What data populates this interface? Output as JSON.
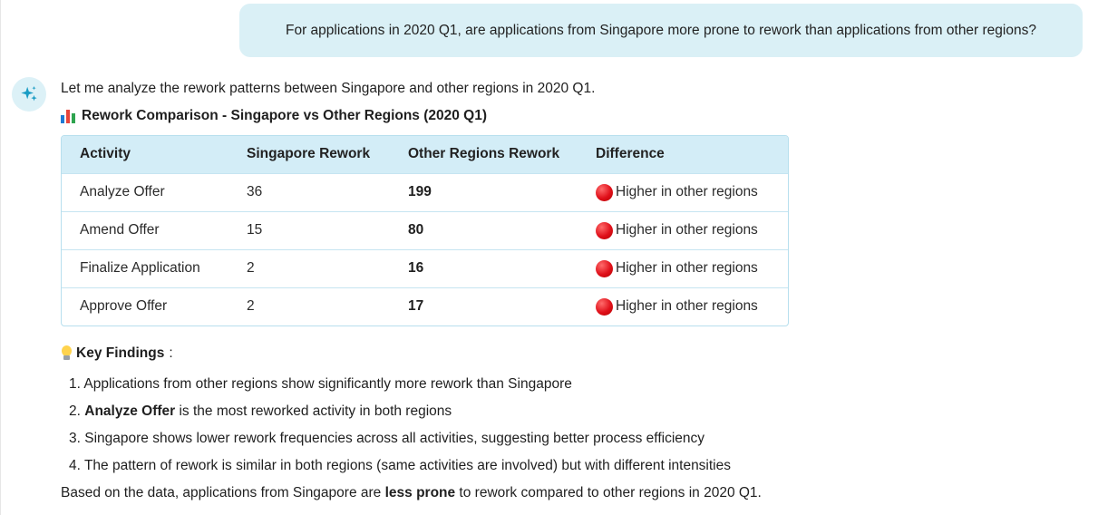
{
  "user_message": "For applications in 2020 Q1, are applications from Singapore more prone to rework than applications from other regions?",
  "assistant": {
    "intro": "Let me analyze the rework patterns between Singapore and other regions in 2020 Q1.",
    "section_title": "Rework Comparison - Singapore vs Other Regions (2020 Q1)",
    "table": {
      "headers": [
        "Activity",
        "Singapore Rework",
        "Other Regions Rework",
        "Difference"
      ],
      "rows": [
        {
          "activity": "Analyze Offer",
          "singapore": "36",
          "other": "199",
          "difference": "Higher in other regions"
        },
        {
          "activity": "Amend Offer",
          "singapore": "15",
          "other": "80",
          "difference": "Higher in other regions"
        },
        {
          "activity": "Finalize Application",
          "singapore": "2",
          "other": "16",
          "difference": "Higher in other regions"
        },
        {
          "activity": "Approve Offer",
          "singapore": "2",
          "other": "17",
          "difference": "Higher in other regions"
        }
      ]
    },
    "key_findings_label": "Key Findings",
    "findings": [
      {
        "num": "1.",
        "pre": "Applications from other regions show significantly more rework than Singapore",
        "bold": "",
        "post": ""
      },
      {
        "num": "2.",
        "pre": "",
        "bold": "Analyze Offer",
        "post": " is the most reworked activity in both regions"
      },
      {
        "num": "3.",
        "pre": "Singapore shows lower rework frequencies across all activities, suggesting better process efficiency",
        "bold": "",
        "post": ""
      },
      {
        "num": "4.",
        "pre": "The pattern of rework is similar in both regions (same activities are involved) but with different intensities",
        "bold": "",
        "post": ""
      }
    ],
    "conclusion": {
      "pre": "Based on the data, applications from Singapore are ",
      "bold": "less prone",
      "post": " to rework compared to other regions in 2020 Q1."
    }
  },
  "colors": {
    "bubble": "#daf0f6",
    "table_header": "#d3edf7",
    "table_border": "#b7dfee",
    "red_indicator": "#e0101a",
    "avatar_accent": "#1a9cc4"
  },
  "icons": {
    "assistant": "sparkle-icon",
    "section": "bar-chart-icon",
    "findings": "lightbulb-icon",
    "difference": "red-circle-icon"
  }
}
